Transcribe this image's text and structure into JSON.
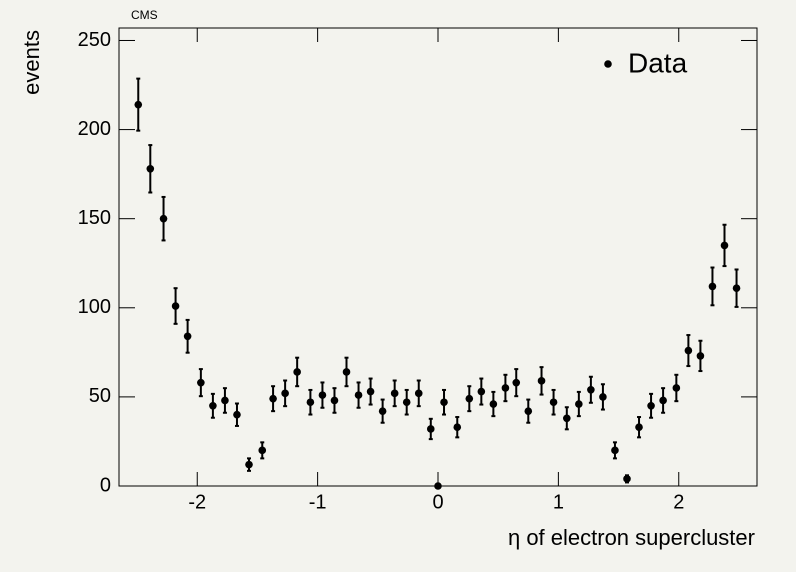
{
  "chart_data": {
    "type": "scatter",
    "header": "CMS",
    "x_label": "η of electron supercluster",
    "y_label": "events",
    "xlim": [
      -2.65,
      2.65
    ],
    "ylim": [
      0,
      257
    ],
    "xticks": [
      -2,
      -1,
      0,
      1,
      2
    ],
    "yticks": [
      0,
      50,
      100,
      150,
      200,
      250
    ],
    "legend_position": "upper right",
    "series": [
      {
        "name": "Data",
        "color": "#000000",
        "x": [
          -2.49,
          -2.39,
          -2.28,
          -2.18,
          -2.08,
          -1.97,
          -1.87,
          -1.77,
          -1.67,
          -1.57,
          -1.46,
          -1.37,
          -1.27,
          -1.17,
          -1.06,
          -0.96,
          -0.86,
          -0.76,
          -0.66,
          -0.56,
          -0.46,
          -0.36,
          -0.26,
          -0.16,
          -0.06,
          0,
          0.05,
          0.16,
          0.26,
          0.36,
          0.46,
          0.56,
          0.65,
          0.75,
          0.86,
          0.96,
          1.07,
          1.17,
          1.27,
          1.37,
          1.47,
          1.57,
          1.67,
          1.77,
          1.87,
          1.98,
          2.08,
          2.18,
          2.28,
          2.38,
          2.48
        ],
        "values": [
          214,
          178,
          150,
          101,
          84,
          58,
          45,
          48,
          40,
          12,
          20,
          49,
          52,
          64,
          47,
          51,
          48,
          64,
          51,
          53,
          42,
          52,
          47,
          52,
          32,
          0,
          47,
          33,
          49,
          53,
          46,
          55,
          58,
          42,
          59,
          47,
          38,
          46,
          54,
          50,
          20,
          4,
          33,
          45,
          48,
          55,
          76,
          73,
          112,
          135,
          111
        ],
        "errors": [
          14.6,
          13.3,
          12.2,
          10,
          9.2,
          7.6,
          6.7,
          6.9,
          6.3,
          3.5,
          4.5,
          7,
          7.2,
          8,
          6.9,
          7.1,
          6.9,
          8,
          7.1,
          7.3,
          6.5,
          7.2,
          6.9,
          7.2,
          5.7,
          0,
          6.9,
          5.7,
          7,
          7.3,
          6.8,
          7.4,
          7.6,
          6.5,
          7.7,
          6.9,
          6.2,
          6.8,
          7.3,
          7.1,
          4.5,
          2,
          5.7,
          6.7,
          6.9,
          7.4,
          8.7,
          8.5,
          10.6,
          11.6,
          10.5
        ]
      }
    ]
  }
}
